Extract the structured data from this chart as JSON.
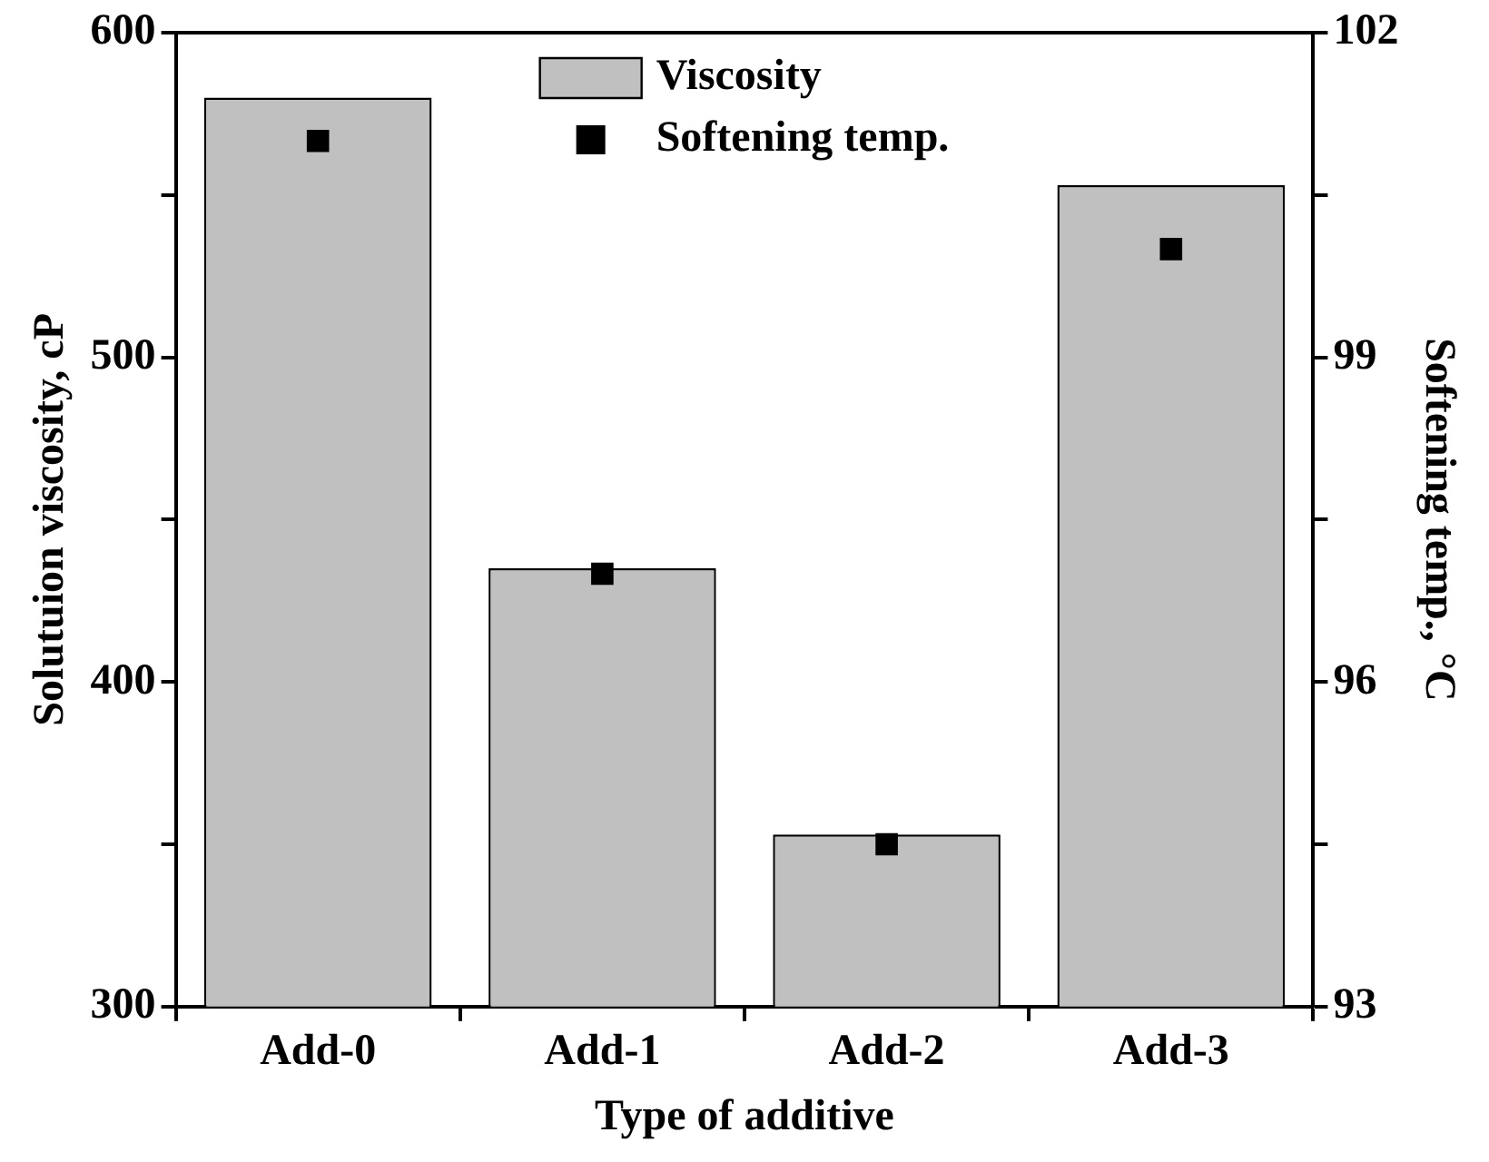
{
  "chart_data": {
    "type": "bar",
    "xlabel": "Type of additive",
    "ylabel": "Solutuion viscosity, cP",
    "y2label": "Softening temp., °C",
    "categories": [
      "Add-0",
      "Add-1",
      "Add-2",
      "Add-3"
    ],
    "series": [
      {
        "name": "Viscosity",
        "color": "#c0c0c0",
        "values": [
          580,
          435,
          353,
          553
        ]
      },
      {
        "name": "Softening temp.",
        "type": "scatter",
        "axis": "y2",
        "color": "#000000",
        "values": [
          101,
          97,
          94.5,
          100
        ]
      }
    ],
    "ylim": [
      300,
      600
    ],
    "yticks": [
      300,
      {
        "value": 350,
        "label": null
      },
      400,
      {
        "value": 450,
        "label": null
      },
      500,
      {
        "value": 550,
        "label": null
      },
      600
    ],
    "y2lim": [
      93,
      102
    ],
    "y2ticks": [
      93,
      {
        "value": 94.5,
        "label": null
      },
      96,
      {
        "value": 97.5,
        "label": null
      },
      99,
      {
        "value": 100.5,
        "label": null
      },
      102
    ],
    "grid": false,
    "legend": "top",
    "marker": "square"
  }
}
